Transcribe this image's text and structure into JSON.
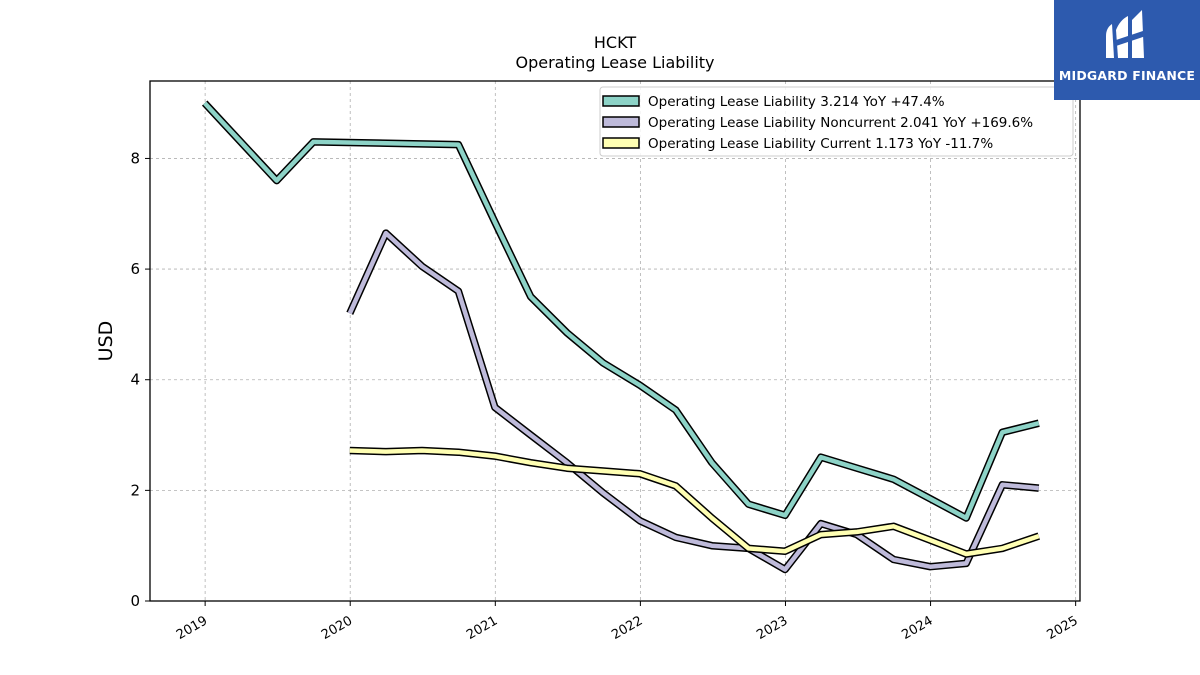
{
  "chart_data": {
    "type": "line",
    "title": "HCKT",
    "subtitle": "Operating Lease Liability",
    "ylabel": "USD",
    "xlabel": "",
    "ylim": [
      0,
      9.4
    ],
    "xlim": [
      2018.62,
      2025.03
    ],
    "yticks": [
      0,
      2,
      4,
      6,
      8
    ],
    "xticks": [
      "2019",
      "2020",
      "2021",
      "2022",
      "2023",
      "2024",
      "2025"
    ],
    "grid": true,
    "legend_position": "top-right",
    "series": [
      {
        "name": "Operating Lease Liability",
        "legend_label": "Operating Lease Liability  3.214 YoY +47.4%",
        "color": "#8dd3c7",
        "x": [
          "2018-12-31",
          "2019-06-30",
          "2019-09-30",
          "2020-09-30",
          "2020-12-31",
          "2021-03-31",
          "2021-06-30",
          "2021-09-30",
          "2021-12-31",
          "2022-03-31",
          "2022-06-30",
          "2022-09-30",
          "2022-12-31",
          "2023-03-31",
          "2023-06-30",
          "2023-09-30",
          "2023-12-31",
          "2024-03-31",
          "2024-06-30",
          "2024-09-30"
        ],
        "y": [
          9.0,
          7.6,
          8.3,
          8.25,
          6.85,
          5.5,
          4.85,
          4.3,
          3.9,
          3.45,
          2.5,
          1.75,
          1.55,
          2.6,
          2.4,
          2.2,
          1.85,
          1.5,
          3.05,
          3.214
        ]
      },
      {
        "name": "Operating Lease Liability Noncurrent",
        "legend_label": "Operating Lease Liability Noncurrent  2.041 YoY +169.6%",
        "color": "#bebada",
        "x": [
          "2019-12-31",
          "2020-03-31",
          "2020-06-30",
          "2020-09-30",
          "2020-12-31",
          "2021-03-31",
          "2021-06-30",
          "2021-09-30",
          "2021-12-31",
          "2022-03-31",
          "2022-06-30",
          "2022-09-30",
          "2022-12-31",
          "2023-03-31",
          "2023-06-30",
          "2023-09-30",
          "2023-12-31",
          "2024-03-31",
          "2024-06-30",
          "2024-09-30"
        ],
        "y": [
          5.2,
          6.65,
          6.05,
          5.6,
          3.5,
          3.0,
          2.5,
          1.95,
          1.45,
          1.15,
          1.0,
          0.95,
          0.57,
          1.4,
          1.2,
          0.75,
          0.62,
          0.68,
          2.1,
          2.041
        ]
      },
      {
        "name": "Operating Lease Liability Current",
        "legend_label": "Operating Lease Liability Current  1.173 YoY -11.7%",
        "color": "#ffffb3",
        "x": [
          "2019-12-31",
          "2020-03-31",
          "2020-06-30",
          "2020-09-30",
          "2020-12-31",
          "2021-03-31",
          "2021-06-30",
          "2021-09-30",
          "2021-12-31",
          "2022-03-31",
          "2022-06-30",
          "2022-09-30",
          "2022-12-31",
          "2023-03-31",
          "2023-06-30",
          "2023-09-30",
          "2023-12-31",
          "2024-03-31",
          "2024-06-30",
          "2024-09-30"
        ],
        "y": [
          2.72,
          2.7,
          2.72,
          2.69,
          2.62,
          2.5,
          2.4,
          2.35,
          2.3,
          2.08,
          1.5,
          0.95,
          0.9,
          1.2,
          1.25,
          1.35,
          1.1,
          0.85,
          0.95,
          1.173
        ]
      }
    ]
  },
  "logo": {
    "text": "MIDGARD FINANCE",
    "color": "#2d5aae"
  }
}
